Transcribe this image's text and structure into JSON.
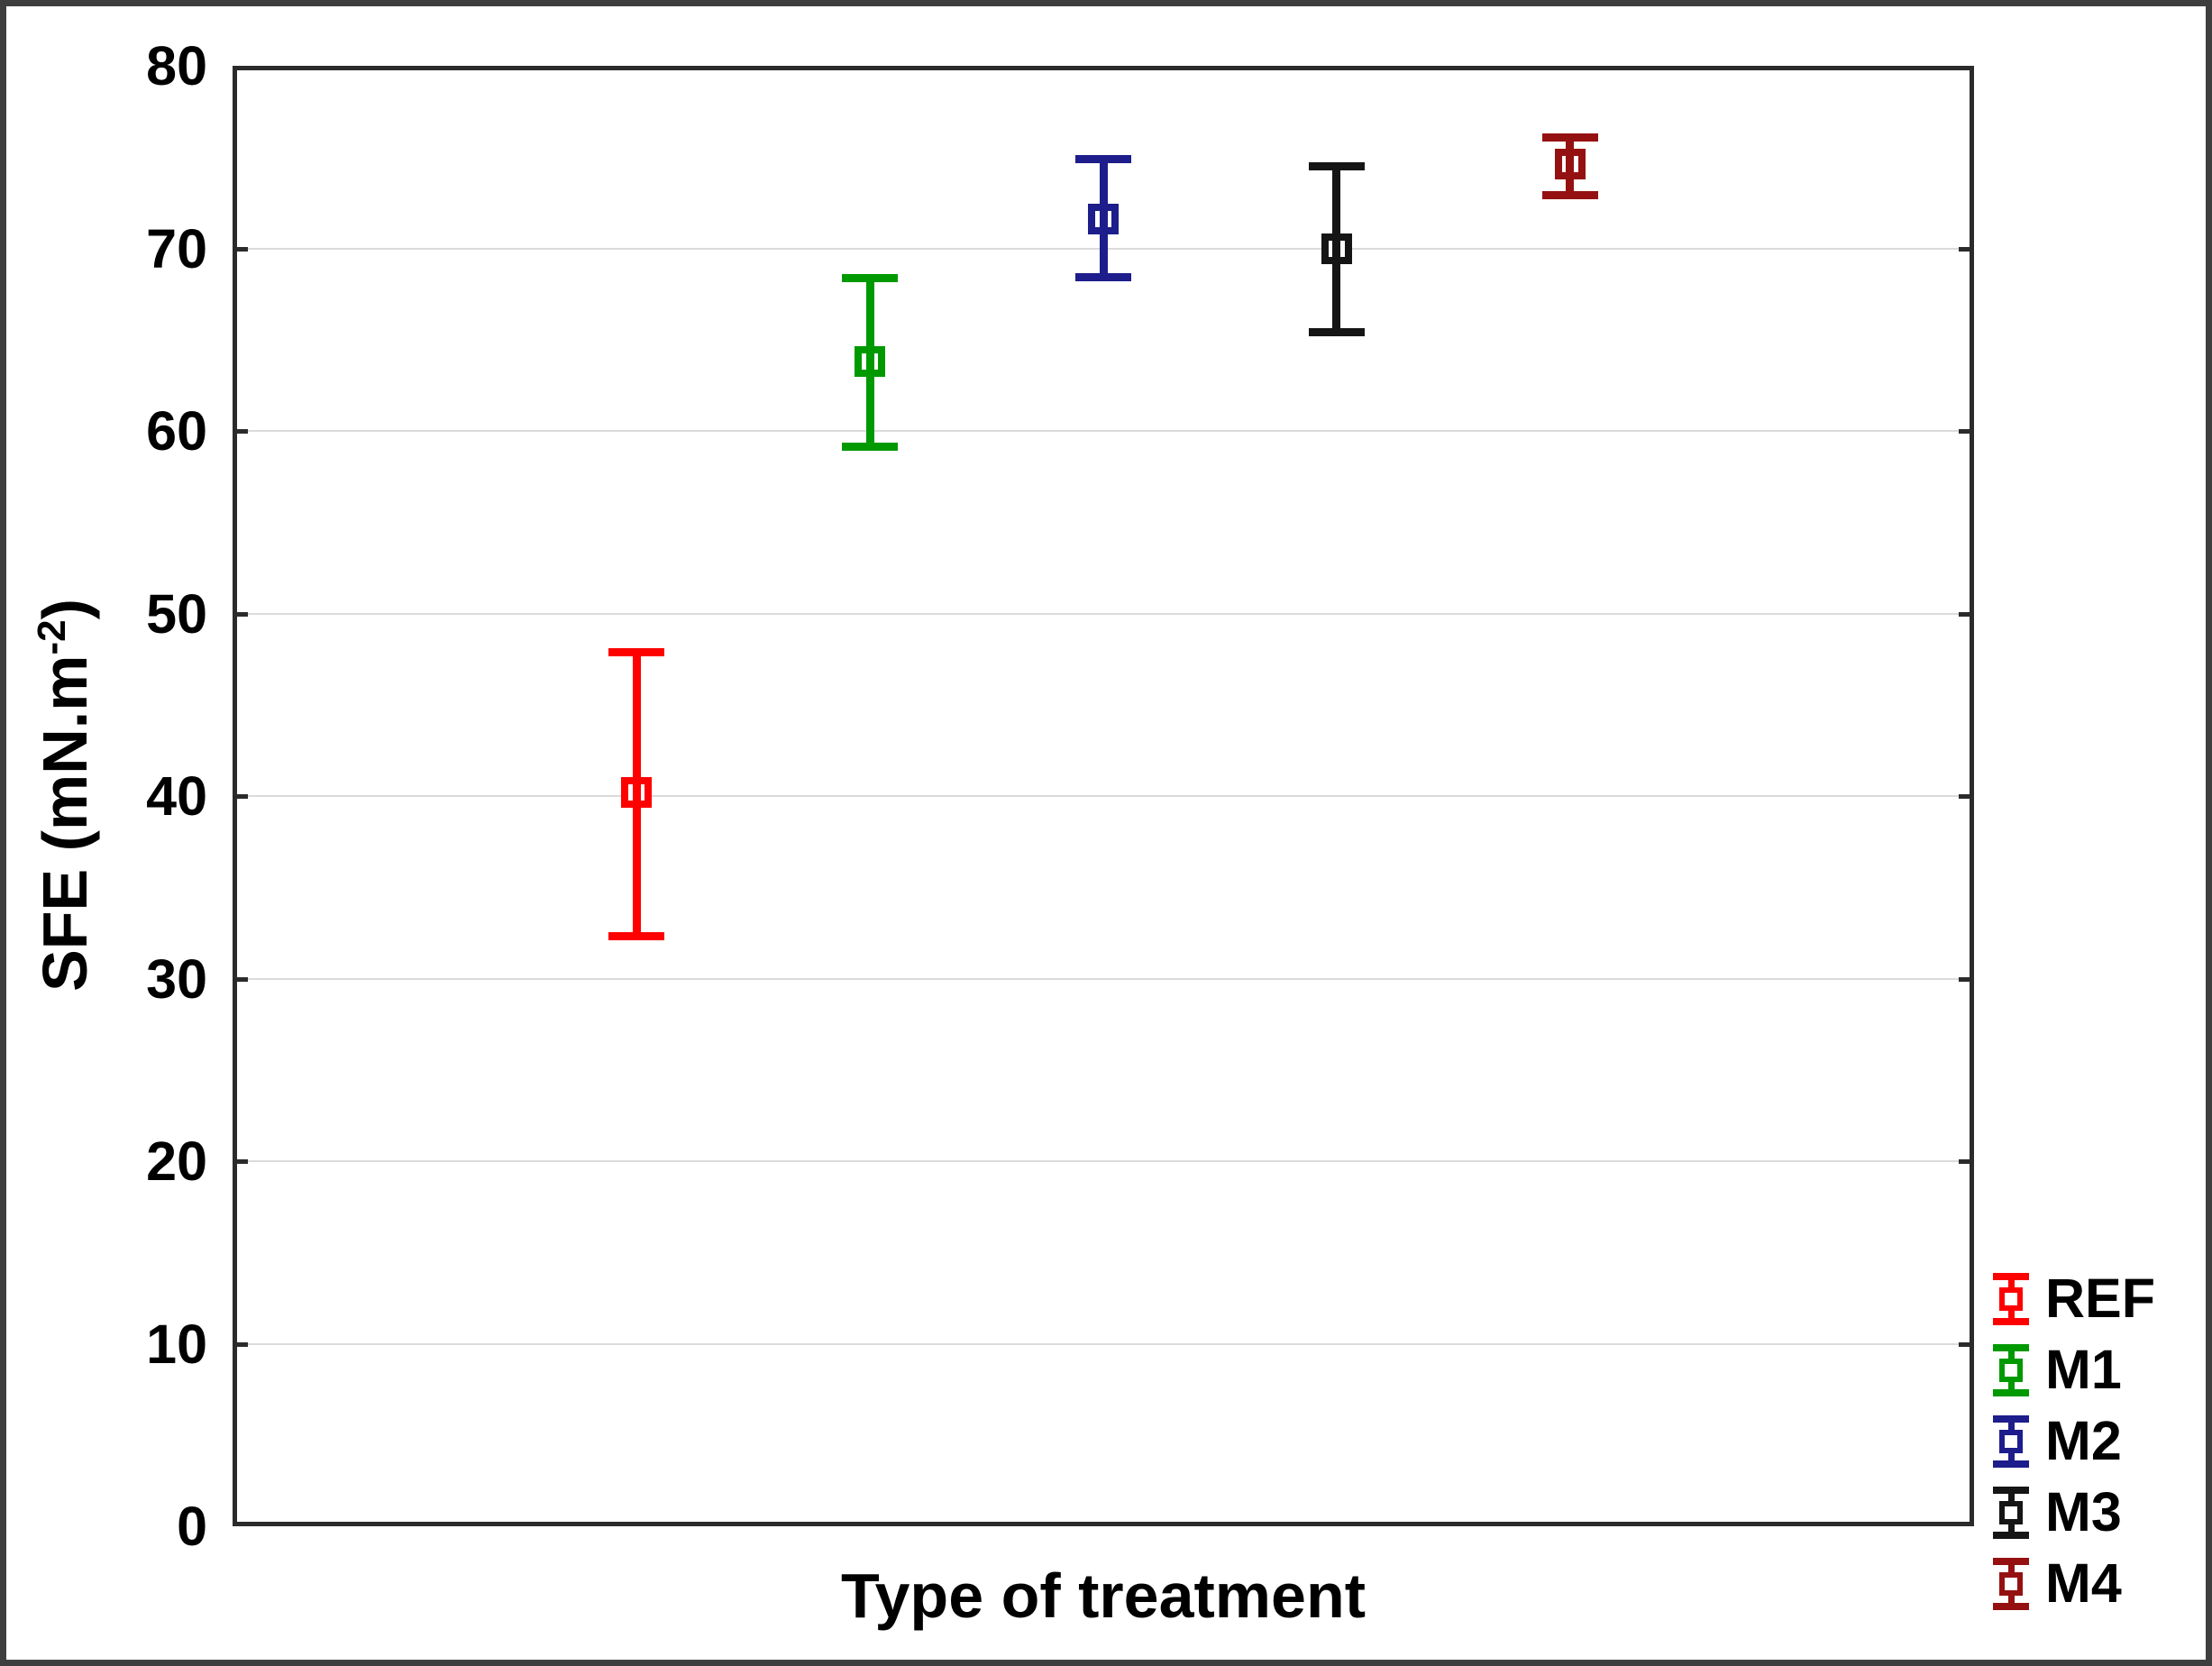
{
  "figure": {
    "background": "#ffffff",
    "border_color": "#3e3e3e",
    "frame_color": "#2b2b2b",
    "grid_color": "#dbdbdb",
    "text_color": "#000000"
  },
  "chart_data": {
    "type": "scatter",
    "subtype": "mean-with-error-bars",
    "title": "",
    "xlabel": "Type of treatment",
    "ylabel": "SFE (mN.m⁻²)",
    "ylabel_parts": {
      "main": "SFE (mN.m",
      "superscript": "-2",
      "close": ")"
    },
    "ylim": [
      0,
      80
    ],
    "yticks": [
      0,
      10,
      20,
      30,
      40,
      50,
      60,
      70,
      80
    ],
    "grid": "horizontal-gridlines",
    "legend_position": "outside-bottom-right",
    "marker": "open-square-with-error-bars",
    "categories": [
      "REF",
      "M1",
      "M2",
      "M3",
      "M4"
    ],
    "series": [
      {
        "name": "REF",
        "color": "#ff0000",
        "x_frac": 0.232,
        "mean": 40.2,
        "upper": 47.9,
        "lower": 32.3
      },
      {
        "name": "M1",
        "color": "#009900",
        "x_frac": 0.366,
        "mean": 63.8,
        "upper": 68.4,
        "lower": 59.1
      },
      {
        "name": "M2",
        "color": "#1d1d8c",
        "x_frac": 0.5,
        "mean": 71.6,
        "upper": 74.9,
        "lower": 68.4
      },
      {
        "name": "M3",
        "color": "#151515",
        "x_frac": 0.634,
        "mean": 70.0,
        "upper": 74.5,
        "lower": 65.4
      },
      {
        "name": "M4",
        "color": "#951111",
        "x_frac": 0.768,
        "mean": 74.6,
        "upper": 76.1,
        "lower": 72.9
      }
    ]
  }
}
